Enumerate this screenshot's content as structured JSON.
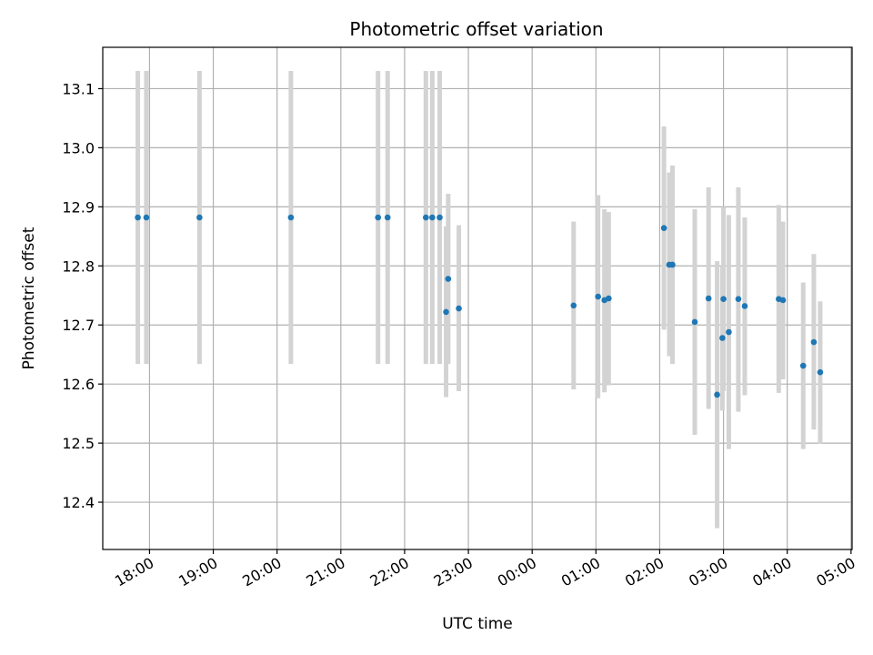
{
  "chart_data": {
    "type": "scatter",
    "title": "Photometric offset variation",
    "xlabel": "UTC time",
    "ylabel": "Photometric offset",
    "x_ticks": [
      "18:00",
      "19:00",
      "20:00",
      "21:00",
      "22:00",
      "23:00",
      "00:00",
      "01:00",
      "02:00",
      "03:00",
      "04:00",
      "05:00"
    ],
    "y_ticks": [
      "12.4",
      "12.5",
      "12.6",
      "12.7",
      "12.8",
      "12.9",
      "13.0",
      "13.1"
    ],
    "xlim": [
      "17:16",
      "05:01"
    ],
    "ylim": [
      12.32,
      13.17
    ],
    "grid": true,
    "colors": {
      "points": "#1f77b4",
      "errorbars": "#d3d3d3"
    },
    "series": [
      {
        "points": [
          {
            "t": "17:49",
            "y": 12.882,
            "ylo": 12.634,
            "yhi": 13.13
          },
          {
            "t": "17:57",
            "y": 12.882,
            "ylo": 12.634,
            "yhi": 13.13
          },
          {
            "t": "18:47",
            "y": 12.882,
            "ylo": 12.634,
            "yhi": 13.13
          },
          {
            "t": "20:13",
            "y": 12.882,
            "ylo": 12.634,
            "yhi": 13.13
          },
          {
            "t": "21:35",
            "y": 12.882,
            "ylo": 12.634,
            "yhi": 13.13
          },
          {
            "t": "21:44",
            "y": 12.882,
            "ylo": 12.634,
            "yhi": 13.13
          },
          {
            "t": "22:20",
            "y": 12.882,
            "ylo": 12.634,
            "yhi": 13.13
          },
          {
            "t": "22:26",
            "y": 12.882,
            "ylo": 12.634,
            "yhi": 13.13
          },
          {
            "t": "22:33",
            "y": 12.882,
            "ylo": 12.634,
            "yhi": 13.13
          },
          {
            "t": "22:39",
            "y": 12.722,
            "ylo": 12.578,
            "yhi": 12.867
          },
          {
            "t": "22:41",
            "y": 12.778,
            "ylo": 12.634,
            "yhi": 12.922
          },
          {
            "t": "22:51",
            "y": 12.728,
            "ylo": 12.588,
            "yhi": 12.869
          },
          {
            "t": "00:39",
            "y": 12.733,
            "ylo": 12.591,
            "yhi": 12.875
          },
          {
            "t": "01:02",
            "y": 12.748,
            "ylo": 12.576,
            "yhi": 12.92
          },
          {
            "t": "01:08",
            "y": 12.742,
            "ylo": 12.586,
            "yhi": 12.896
          },
          {
            "t": "01:12",
            "y": 12.745,
            "ylo": 12.598,
            "yhi": 12.891
          },
          {
            "t": "02:04",
            "y": 12.864,
            "ylo": 12.692,
            "yhi": 13.036
          },
          {
            "t": "02:09",
            "y": 12.802,
            "ylo": 12.647,
            "yhi": 12.958
          },
          {
            "t": "02:12",
            "y": 12.802,
            "ylo": 12.634,
            "yhi": 12.97
          },
          {
            "t": "02:33",
            "y": 12.705,
            "ylo": 12.514,
            "yhi": 12.896
          },
          {
            "t": "02:46",
            "y": 12.745,
            "ylo": 12.558,
            "yhi": 12.933
          },
          {
            "t": "02:54",
            "y": 12.582,
            "ylo": 12.356,
            "yhi": 12.808
          },
          {
            "t": "02:59",
            "y": 12.678,
            "ylo": 12.555,
            "yhi": 12.8
          },
          {
            "t": "03:00",
            "y": 12.744,
            "ylo": 12.588,
            "yhi": 12.9
          },
          {
            "t": "03:05",
            "y": 12.688,
            "ylo": 12.49,
            "yhi": 12.886
          },
          {
            "t": "03:14",
            "y": 12.744,
            "ylo": 12.553,
            "yhi": 12.933
          },
          {
            "t": "03:20",
            "y": 12.732,
            "ylo": 12.581,
            "yhi": 12.882
          },
          {
            "t": "03:52",
            "y": 12.744,
            "ylo": 12.585,
            "yhi": 12.903
          },
          {
            "t": "03:56",
            "y": 12.742,
            "ylo": 12.608,
            "yhi": 12.875
          },
          {
            "t": "04:15",
            "y": 12.631,
            "ylo": 12.49,
            "yhi": 12.772
          },
          {
            "t": "04:25",
            "y": 12.671,
            "ylo": 12.523,
            "yhi": 12.82
          },
          {
            "t": "04:31",
            "y": 12.62,
            "ylo": 12.499,
            "yhi": 12.74
          }
        ]
      }
    ]
  }
}
